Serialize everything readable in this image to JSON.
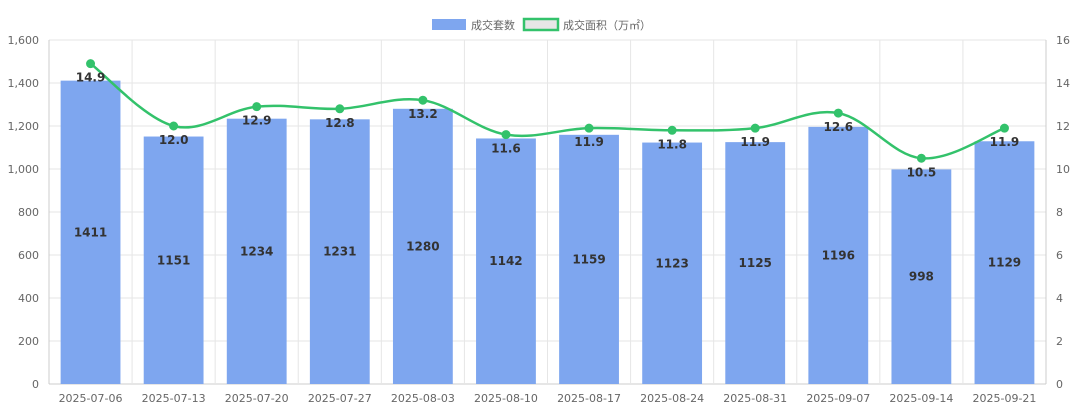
{
  "chart_data": {
    "type": "bar",
    "categories": [
      "2025-07-06",
      "2025-07-13",
      "2025-07-20",
      "2025-07-27",
      "2025-08-03",
      "2025-08-10",
      "2025-08-17",
      "2025-08-24",
      "2025-08-31",
      "2025-09-07",
      "2025-09-14",
      "2025-09-21"
    ],
    "series": [
      {
        "name": "成交套数",
        "type": "bar",
        "axis": "left",
        "color": "#7ea6ef",
        "values": [
          1411,
          1151,
          1234,
          1231,
          1280,
          1142,
          1159,
          1123,
          1125,
          1196,
          998,
          1129
        ],
        "labels": [
          "1411",
          "1151",
          "1234",
          "1231",
          "1280",
          "1142",
          "1159",
          "1123",
          "1125",
          "1196",
          "998",
          "1129"
        ]
      },
      {
        "name": "成交面积（万㎡）",
        "type": "line",
        "axis": "right",
        "color": "#33c26b",
        "values": [
          14.9,
          12.0,
          12.9,
          12.8,
          13.2,
          11.6,
          11.9,
          11.8,
          11.9,
          12.6,
          10.5,
          11.9
        ],
        "labels": [
          "14.9",
          "12.0",
          "12.9",
          "12.8",
          "13.2",
          "11.6",
          "11.9",
          "11.8",
          "11.9",
          "12.6",
          "10.5",
          "11.9"
        ]
      }
    ],
    "y_left": {
      "min": 0,
      "max": 1600,
      "step": 200,
      "tick_labels": [
        "0",
        "200",
        "400",
        "600",
        "800",
        "1,000",
        "1,200",
        "1,400",
        "1,600"
      ]
    },
    "y_right": {
      "min": 0,
      "max": 16,
      "step": 2,
      "tick_labels": [
        "0",
        "2",
        "4",
        "6",
        "8",
        "10",
        "12",
        "14",
        "16"
      ]
    },
    "grid": true,
    "legend_position": "top-center"
  }
}
